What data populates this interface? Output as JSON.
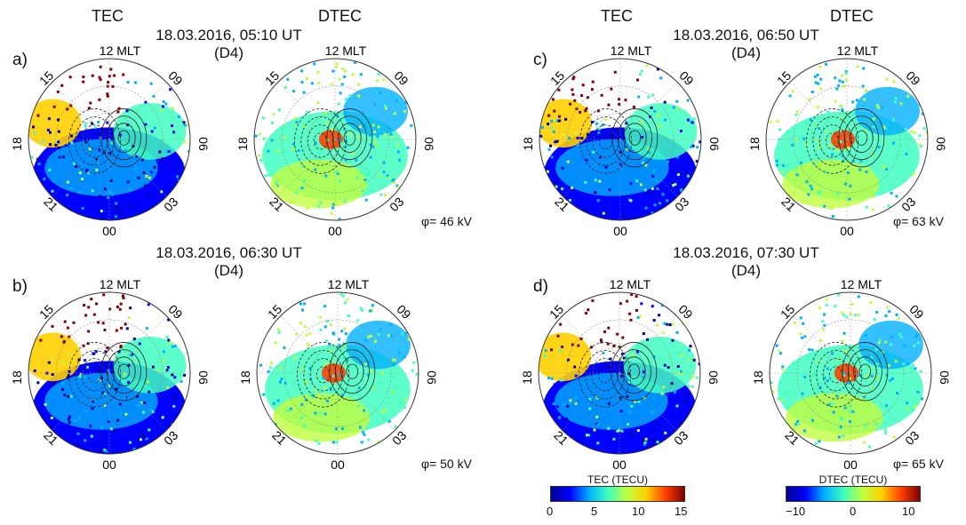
{
  "headers": [
    "TEC",
    "DTEC",
    "TEC",
    "DTEC"
  ],
  "panels": [
    {
      "label": "a)",
      "time": "18.03.2016, 05:10 UT",
      "station": "(D4)",
      "phi": "φ= 46 kV"
    },
    {
      "label": "b)",
      "time": "18.03.2016, 06:30 UT",
      "station": "(D4)",
      "phi": "φ= 50 kV"
    },
    {
      "label": "c)",
      "time": "18.03.2016, 06:50 UT",
      "station": "(D4)",
      "phi": "φ= 63 kV"
    },
    {
      "label": "d)",
      "time": "18.03.2016, 07:30 UT",
      "station": "(D4)",
      "phi": "φ= 65 kV"
    }
  ],
  "mlt": {
    "top": "12",
    "unit": "MLT",
    "left": "18",
    "right": "06",
    "bottom": "00",
    "upper_left": "15",
    "upper_right": "09",
    "lower_left": "21",
    "lower_right": "03"
  },
  "colorbars": [
    {
      "title": "TEC (TECU)",
      "ticks": [
        "0",
        "5",
        "10",
        "15"
      ]
    },
    {
      "title": "DTEC (TECU)",
      "ticks": [
        "−10",
        "0",
        "10"
      ]
    }
  ],
  "colors": {
    "jet": [
      "#00008f",
      "#0000ff",
      "#00b0ff",
      "#40ffbf",
      "#c0ff40",
      "#ffd000",
      "#ff4000",
      "#800000"
    ]
  }
}
